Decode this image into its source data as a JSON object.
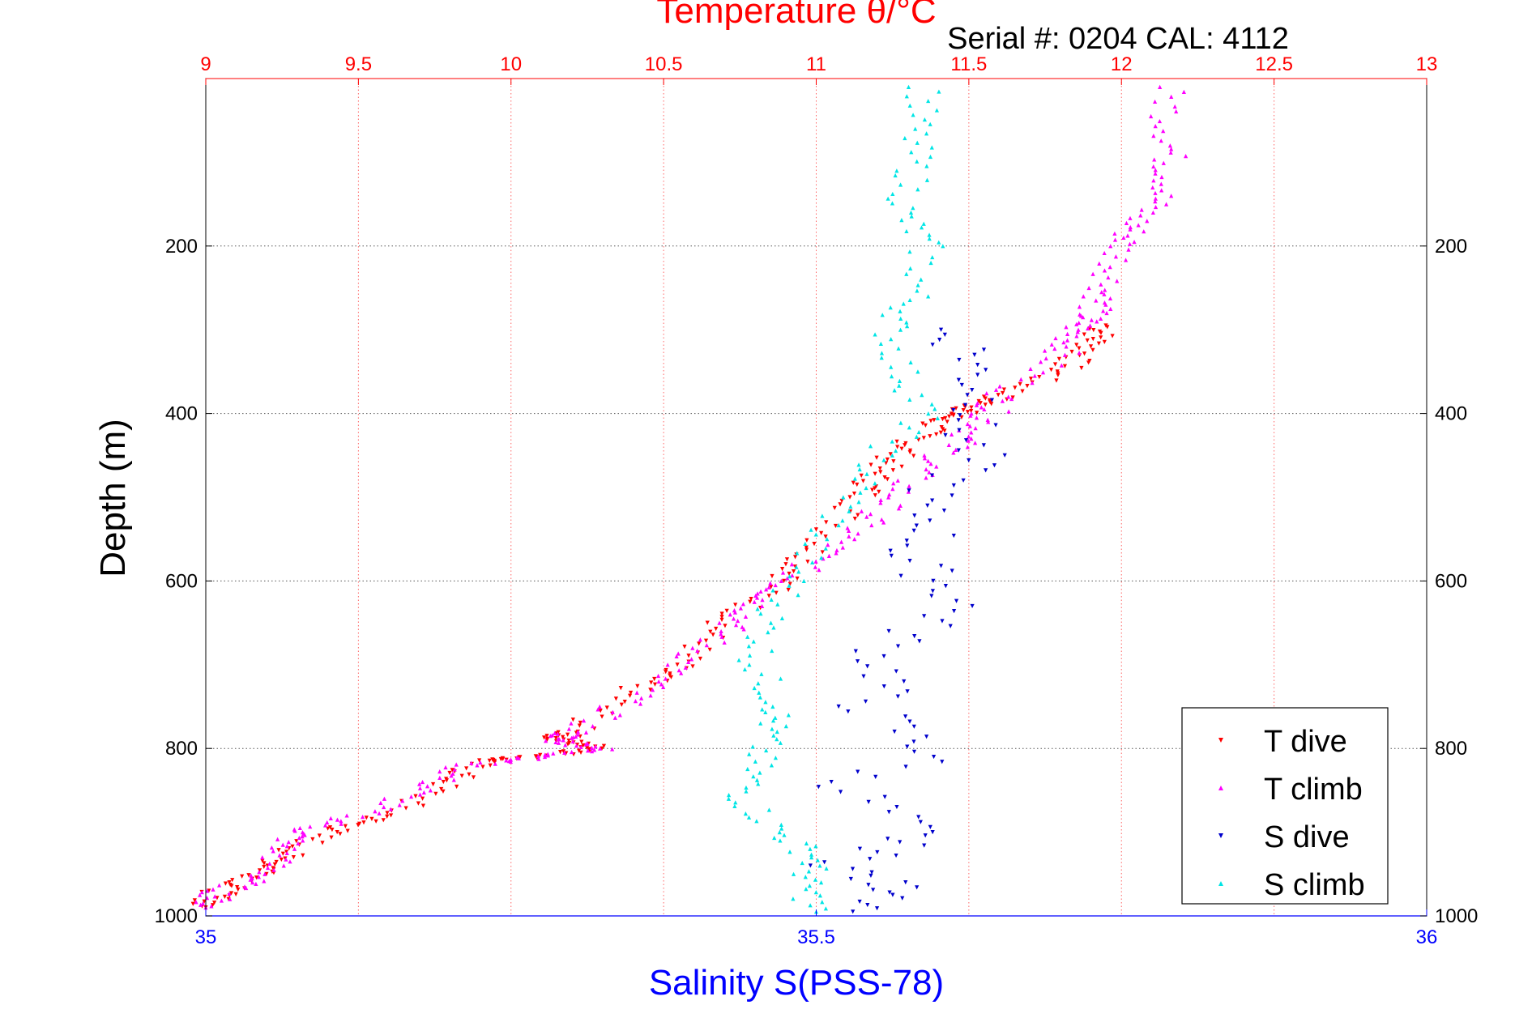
{
  "chart_data": {
    "type": "scatter",
    "title": "Temperature θ/°C",
    "subtitle": "Serial #: 0204  CAL: 4112",
    "xlabel_bottom": "Salinity S(PSS-78)",
    "xlabel_top": "",
    "ylabel": "Depth (m)",
    "x_bottom_range": [
      35,
      36
    ],
    "x_bottom_ticks": [
      "35",
      "35.5",
      "36"
    ],
    "x_top_range": [
      9,
      13
    ],
    "x_top_ticks": [
      "9",
      "9.5",
      "10",
      "10.5",
      "11",
      "11.5",
      "12",
      "12.5",
      "13"
    ],
    "y_range": [
      0,
      1000
    ],
    "y_reversed": true,
    "y_ticks": [
      "200",
      "400",
      "600",
      "800",
      "1000"
    ],
    "grid": true,
    "legend_position": "bottom-right",
    "colors": {
      "temperature_axis": "#ff0000",
      "salinity_axis": "#0000ff",
      "t_dive": "#ff0000",
      "t_climb": "#ff00ff",
      "s_dive": "#0000cc",
      "s_climb": "#00e5e5",
      "grid_vertical": "#ff6666",
      "grid_horizontal": "#555555"
    },
    "series": [
      {
        "name": "T dive",
        "axis": "top",
        "color": "#ff0000",
        "x": [
          11.95,
          11.9,
          11.8,
          11.6,
          11.5,
          11.4,
          11.3,
          11.2,
          11.15,
          11.0,
          10.9,
          10.7,
          10.55,
          10.4,
          10.2,
          10.15,
          10.3,
          10.1,
          9.9,
          9.8,
          9.6,
          9.4,
          9.25,
          9.2,
          9.05,
          9.0
        ],
        "y": [
          295,
          320,
          350,
          380,
          395,
          410,
          440,
          470,
          500,
          560,
          600,
          650,
          700,
          730,
          780,
          790,
          800,
          810,
          815,
          840,
          880,
          900,
          930,
          950,
          970,
          990
        ]
      },
      {
        "name": "T climb",
        "axis": "top",
        "color": "#ff00ff",
        "x": [
          12.15,
          12.16,
          12.15,
          12.05,
          12.0,
          11.95,
          11.9,
          11.85,
          11.8,
          11.6,
          11.55,
          11.45,
          11.3,
          11.2,
          11.05,
          10.9,
          10.8,
          10.7,
          10.55,
          10.4,
          10.2,
          10.15,
          10.3,
          10.1,
          9.85,
          9.7,
          9.5,
          9.3,
          9.25,
          9.2,
          9.05,
          9.0
        ],
        "y": [
          10,
          80,
          130,
          170,
          200,
          250,
          280,
          300,
          330,
          380,
          410,
          440,
          480,
          520,
          560,
          600,
          630,
          660,
          700,
          740,
          780,
          790,
          800,
          810,
          820,
          850,
          880,
          900,
          920,
          950,
          970,
          990
        ]
      },
      {
        "name": "S dive",
        "axis": "bottom",
        "color": "#0000cc",
        "x": [
          35.6,
          35.63,
          35.63,
          35.64,
          35.62,
          35.63,
          35.61,
          35.58,
          35.6,
          35.57,
          35.6,
          35.62,
          35.58,
          35.55,
          35.56,
          35.54,
          35.57,
          35.6,
          35.52,
          35.55,
          35.58,
          35.56,
          35.52,
          35.55,
          35.58,
          35.53
        ],
        "y": [
          300,
          330,
          360,
          390,
          420,
          450,
          480,
          510,
          540,
          570,
          600,
          630,
          660,
          690,
          720,
          750,
          780,
          810,
          840,
          870,
          900,
          920,
          940,
          960,
          975,
          995
        ]
      },
      {
        "name": "S climb",
        "axis": "bottom",
        "color": "#00e5e5",
        "x": [
          35.59,
          35.58,
          35.58,
          35.57,
          35.59,
          35.58,
          35.56,
          35.57,
          35.59,
          35.55,
          35.53,
          35.5,
          35.48,
          35.46,
          35.45,
          35.47,
          35.46,
          35.45,
          35.44,
          35.47,
          35.5,
          35.49,
          35.5
        ],
        "y": [
          10,
          60,
          110,
          160,
          200,
          260,
          300,
          350,
          400,
          450,
          500,
          550,
          600,
          650,
          700,
          750,
          780,
          820,
          860,
          900,
          930,
          960,
          995
        ]
      }
    ]
  }
}
